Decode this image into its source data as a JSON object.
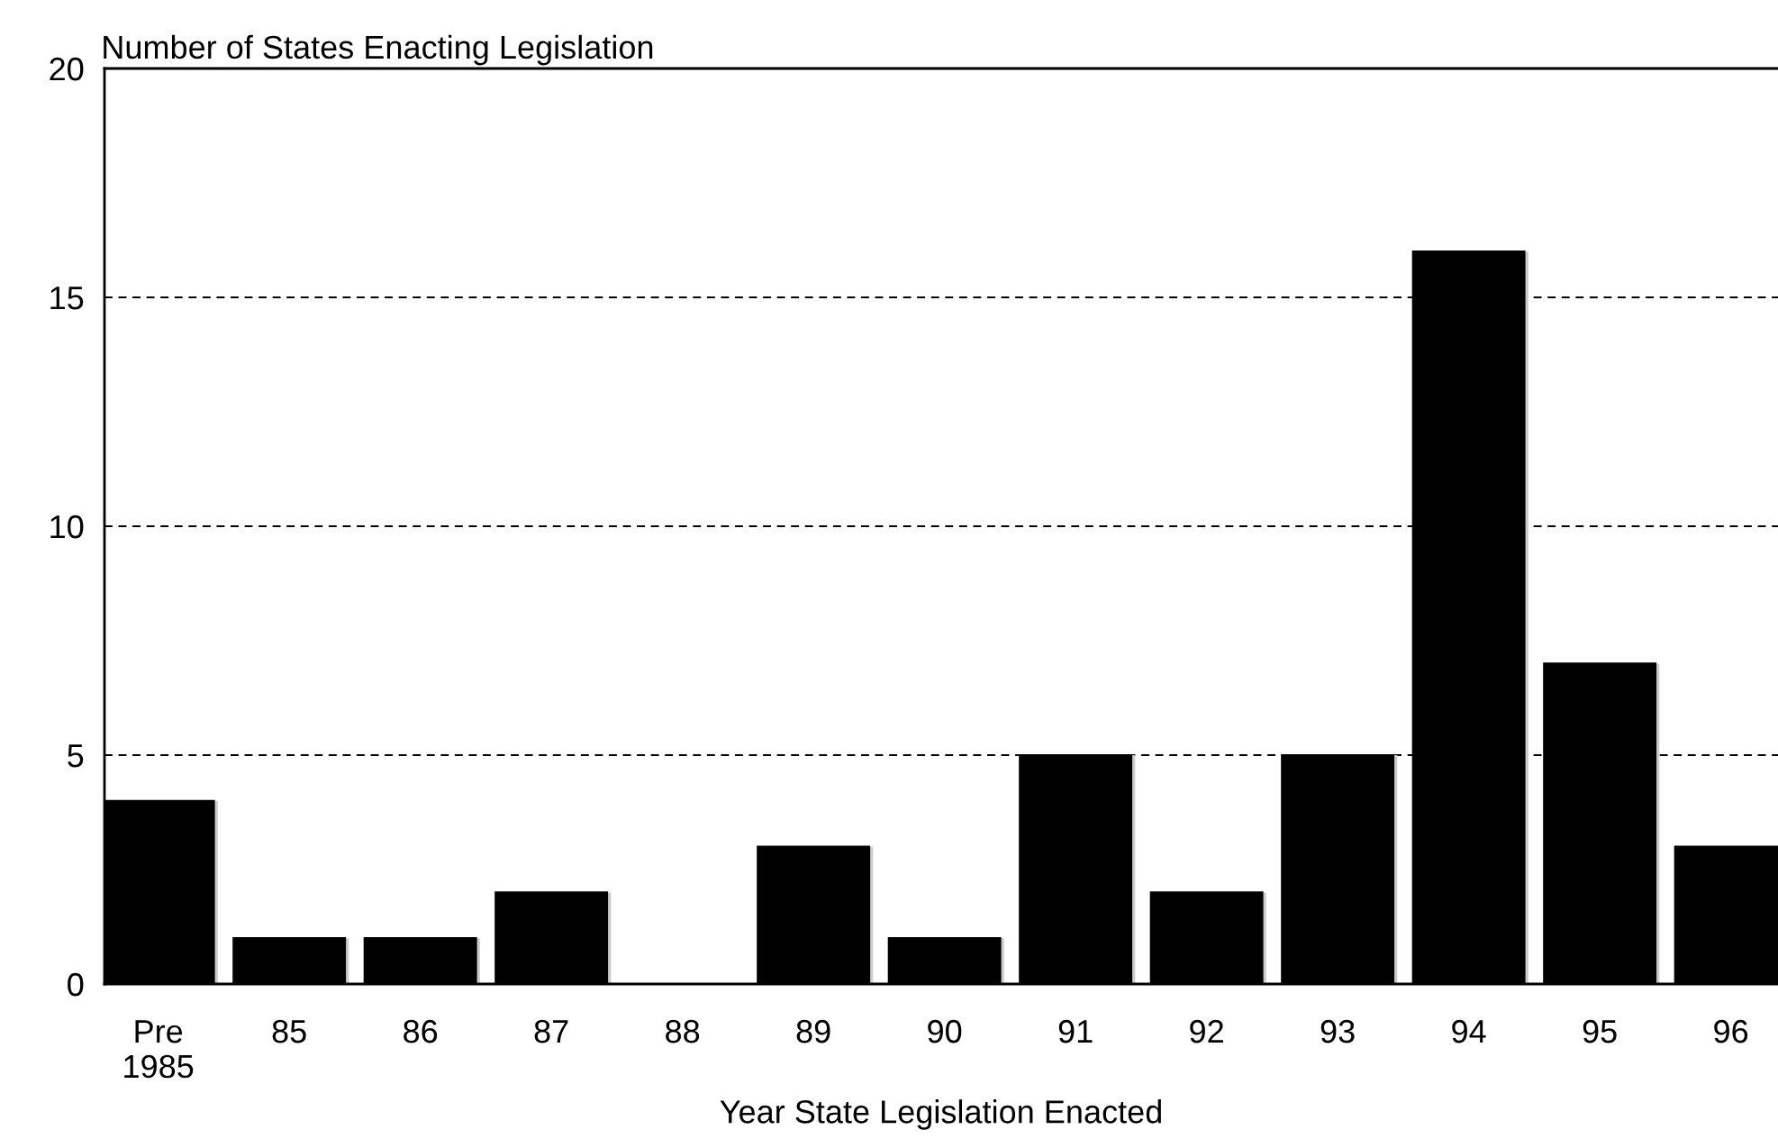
{
  "chart_data": {
    "type": "bar",
    "title": "Number of States Enacting Legislation",
    "xlabel": "Year State Legislation Enacted",
    "categories": [
      "Pre\n1985",
      "85",
      "86",
      "87",
      "88",
      "89",
      "90",
      "91",
      "92",
      "93",
      "94",
      "95",
      "96"
    ],
    "values": [
      4,
      1,
      1,
      2,
      0,
      3,
      1,
      5,
      2,
      5,
      16,
      7,
      3
    ],
    "color": "#000000",
    "ylim": [
      0,
      20
    ],
    "yticks": [
      0,
      5,
      10,
      15,
      20
    ],
    "grid": "y",
    "line_style": "dashed"
  }
}
